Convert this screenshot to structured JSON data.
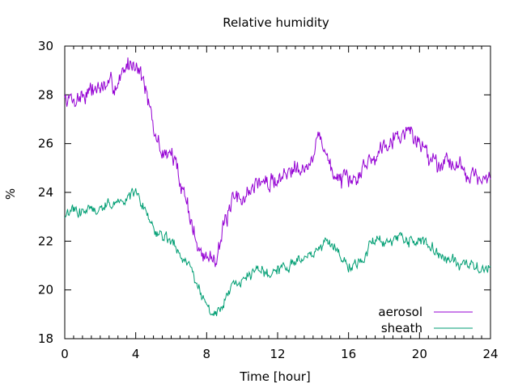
{
  "chart_data": {
    "type": "line",
    "title": "Relative humidity",
    "xlabel": "Time [hour]",
    "ylabel": "%",
    "xlim": [
      0,
      24
    ],
    "ylim": [
      18,
      30
    ],
    "xticks": [
      0,
      4,
      8,
      12,
      16,
      20,
      24
    ],
    "yticks": [
      18,
      20,
      22,
      24,
      26,
      28,
      30
    ],
    "grid": false,
    "legend_position": "bottom-right",
    "series": [
      {
        "name": "aerosol",
        "color": "#9400d3",
        "x": [
          0,
          0.5,
          1,
          1.5,
          2,
          2.5,
          3,
          3.5,
          4,
          4.5,
          5,
          5.5,
          6,
          6.5,
          7,
          7.5,
          8,
          8.5,
          9,
          9.5,
          10,
          10.5,
          11,
          11.5,
          12,
          12.5,
          13,
          13.5,
          14,
          14.3,
          14.5,
          15,
          15.5,
          16,
          16.5,
          17,
          17.5,
          18,
          18.5,
          19,
          19.5,
          20,
          20.5,
          21,
          21.5,
          22,
          22.5,
          23,
          23.5,
          24
        ],
        "values": [
          27.9,
          27.8,
          28.0,
          28.2,
          28.3,
          28.3,
          28.5,
          29.2,
          29.4,
          28.5,
          26.5,
          25.6,
          25.6,
          24.6,
          23.3,
          21.6,
          21.3,
          21.4,
          22.6,
          23.6,
          23.8,
          24.1,
          24.5,
          24.3,
          24.6,
          24.7,
          25.3,
          25.0,
          25.2,
          26.5,
          26.2,
          24.9,
          24.6,
          24.3,
          24.6,
          25.3,
          25.4,
          26.1,
          26.3,
          26.4,
          26.5,
          26.0,
          25.6,
          25.2,
          25.4,
          25.2,
          24.9,
          24.8,
          24.4,
          24.5
        ]
      },
      {
        "name": "sheath",
        "color": "#009e73",
        "x": [
          0,
          0.5,
          1,
          1.5,
          2,
          2.5,
          3,
          3.5,
          4,
          4.5,
          5,
          5.5,
          6,
          6.5,
          7,
          7.5,
          8,
          8.5,
          9,
          9.5,
          10,
          10.5,
          11,
          11.5,
          12,
          12.5,
          13,
          13.5,
          14,
          14.5,
          15,
          15.5,
          16,
          16.5,
          17,
          17.3,
          17.5,
          18,
          18.5,
          19,
          19.5,
          20,
          20.5,
          21,
          21.5,
          22,
          22.5,
          23,
          23.5,
          24
        ],
        "values": [
          23.0,
          23.2,
          23.3,
          23.3,
          23.3,
          23.5,
          23.6,
          23.8,
          24.0,
          23.4,
          22.5,
          22.2,
          21.9,
          21.5,
          20.9,
          20.2,
          19.3,
          18.9,
          19.5,
          20.0,
          20.3,
          20.6,
          20.8,
          20.7,
          20.8,
          21.0,
          21.2,
          21.4,
          21.6,
          21.7,
          22.0,
          21.4,
          21.1,
          21.0,
          21.4,
          22.2,
          22.0,
          21.9,
          22.0,
          22.1,
          22.1,
          22.0,
          21.8,
          21.5,
          21.3,
          21.2,
          21.1,
          21.0,
          20.9,
          20.8
        ]
      }
    ]
  }
}
